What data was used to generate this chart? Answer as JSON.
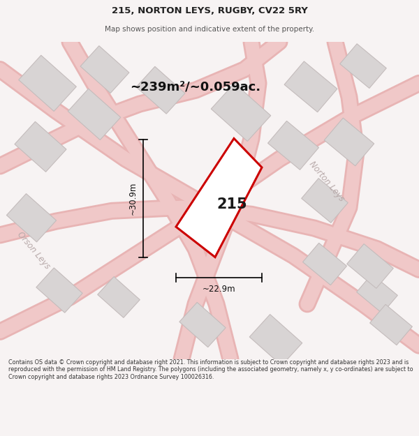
{
  "title_line1": "215, NORTON LEYS, RUGBY, CV22 5RY",
  "title_line2": "Map shows position and indicative extent of the property.",
  "area_text": "~239m²/~0.059ac.",
  "label_215": "215",
  "dim_height": "~30.9m",
  "dim_width": "~22.9m",
  "street_norton": "Norton Leys",
  "street_orson": "Orson Leys",
  "footer_text": "Contains OS data © Crown copyright and database right 2021. This information is subject to Crown copyright and database rights 2023 and is reproduced with the permission of HM Land Registry. The polygons (including the associated geometry, namely x, y co-ordinates) are subject to Crown copyright and database rights 2023 Ordnance Survey 100026316.",
  "bg_color": "#f7f3f3",
  "map_bg": "#f7f3f3",
  "plot_color_red": "#cc0000",
  "building_fill": "#d8d4d4",
  "building_edge": "#c4bcbc",
  "road_color": "#f0c8c8",
  "road_edge": "#e8b4b4",
  "street_label_color": "#b8aaaa",
  "fig_width": 6.0,
  "fig_height": 6.25
}
